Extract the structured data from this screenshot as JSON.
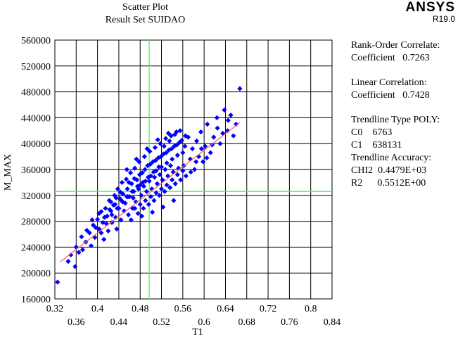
{
  "brand": {
    "name": "ANSYS",
    "version": "R19.0"
  },
  "chart_data": {
    "type": "scatter",
    "title": "Scatter Plot",
    "subtitle": "Result Set SUIDAO",
    "xlabel": "T1",
    "ylabel": "M_MAX",
    "xlim": [
      0.32,
      0.84
    ],
    "ylim": [
      160000,
      560000
    ],
    "x_ticks_upper": [
      "0.32",
      "0.4",
      "0.48",
      "0.56",
      "0.64",
      "0.72",
      "0.8"
    ],
    "x_ticks_lower": [
      "0.36",
      "0.44",
      "0.52",
      "0.6",
      "0.68",
      "0.76",
      "0.84"
    ],
    "y_ticks": [
      "160000",
      "200000",
      "240000",
      "280000",
      "320000",
      "360000",
      "400000",
      "440000",
      "480000",
      "520000",
      "560000"
    ],
    "grid": true,
    "marker_color": "#0000ff",
    "trend_color": "#ff6666",
    "mean_line_color": "#33ff33",
    "mean_x": 0.497,
    "mean_y": 326000,
    "trendline": {
      "c0": 6763,
      "c1": 638131,
      "x_range": [
        0.33,
        0.667
      ]
    },
    "series": [
      {
        "points": [
          [
            0.325,
            186000
          ],
          [
            0.345,
            218000
          ],
          [
            0.358,
            210000
          ],
          [
            0.365,
            232000
          ],
          [
            0.372,
            236000
          ],
          [
            0.378,
            248000
          ],
          [
            0.385,
            262000
          ],
          [
            0.388,
            242000
          ],
          [
            0.392,
            274000
          ],
          [
            0.395,
            255000
          ],
          [
            0.4,
            283000
          ],
          [
            0.403,
            268000
          ],
          [
            0.407,
            295000
          ],
          [
            0.41,
            278000
          ],
          [
            0.412,
            252000
          ],
          [
            0.415,
            300000
          ],
          [
            0.418,
            288000
          ],
          [
            0.42,
            265000
          ],
          [
            0.422,
            312000
          ],
          [
            0.425,
            296000
          ],
          [
            0.427,
            278000
          ],
          [
            0.43,
            305000
          ],
          [
            0.432,
            320000
          ],
          [
            0.434,
            286000
          ],
          [
            0.436,
            268000
          ],
          [
            0.438,
            330000
          ],
          [
            0.44,
            300000
          ],
          [
            0.442,
            315000
          ],
          [
            0.444,
            282000
          ],
          [
            0.446,
            340000
          ],
          [
            0.448,
            322000
          ],
          [
            0.45,
            296000
          ],
          [
            0.452,
            308000
          ],
          [
            0.454,
            345000
          ],
          [
            0.456,
            330000
          ],
          [
            0.458,
            290000
          ],
          [
            0.46,
            318000
          ],
          [
            0.462,
            355000
          ],
          [
            0.464,
            338000
          ],
          [
            0.466,
            300000
          ],
          [
            0.468,
            326000
          ],
          [
            0.47,
            362000
          ],
          [
            0.472,
            310000
          ],
          [
            0.474,
            344000
          ],
          [
            0.476,
            292000
          ],
          [
            0.478,
            372000
          ],
          [
            0.48,
            336000
          ],
          [
            0.482,
            320000
          ],
          [
            0.484,
            355000
          ],
          [
            0.486,
            300000
          ],
          [
            0.488,
            380000
          ],
          [
            0.49,
            342000
          ],
          [
            0.492,
            326000
          ],
          [
            0.494,
            366000
          ],
          [
            0.496,
            306000
          ],
          [
            0.498,
            388000
          ],
          [
            0.5,
            350000
          ],
          [
            0.502,
            330000
          ],
          [
            0.504,
            372000
          ],
          [
            0.506,
            312000
          ],
          [
            0.508,
            394000
          ],
          [
            0.51,
            358000
          ],
          [
            0.512,
            338000
          ],
          [
            0.514,
            378000
          ],
          [
            0.516,
            320000
          ],
          [
            0.518,
            400000
          ],
          [
            0.52,
            364000
          ],
          [
            0.522,
            344000
          ],
          [
            0.524,
            384000
          ],
          [
            0.526,
            326000
          ],
          [
            0.528,
            408000
          ],
          [
            0.53,
            370000
          ],
          [
            0.532,
            350000
          ],
          [
            0.534,
            390000
          ],
          [
            0.536,
            332000
          ],
          [
            0.538,
            412000
          ],
          [
            0.54,
            376000
          ],
          [
            0.542,
            356000
          ],
          [
            0.544,
            396000
          ],
          [
            0.546,
            338000
          ],
          [
            0.548,
            418000
          ],
          [
            0.55,
            382000
          ],
          [
            0.552,
            362000
          ],
          [
            0.554,
            402000
          ],
          [
            0.556,
            344000
          ],
          [
            0.558,
            405000
          ],
          [
            0.56,
            386000
          ],
          [
            0.562,
            366000
          ],
          [
            0.564,
            396000
          ],
          [
            0.566,
            350000
          ],
          [
            0.57,
            410000
          ],
          [
            0.574,
            376000
          ],
          [
            0.578,
            392000
          ],
          [
            0.582,
            360000
          ],
          [
            0.586,
            404000
          ],
          [
            0.59,
            380000
          ],
          [
            0.594,
            418000
          ],
          [
            0.598,
            372000
          ],
          [
            0.602,
            396000
          ],
          [
            0.606,
            430000
          ],
          [
            0.612,
            386000
          ],
          [
            0.618,
            410000
          ],
          [
            0.624,
            440000
          ],
          [
            0.63,
            400000
          ],
          [
            0.638,
            452000
          ],
          [
            0.644,
            420000
          ],
          [
            0.65,
            444000
          ],
          [
            0.667,
            485000
          ],
          [
            0.455,
            360000
          ],
          [
            0.463,
            282000
          ],
          [
            0.473,
            376000
          ],
          [
            0.483,
            288000
          ],
          [
            0.493,
            392000
          ],
          [
            0.503,
            294000
          ],
          [
            0.513,
            406000
          ],
          [
            0.523,
            302000
          ],
          [
            0.533,
            416000
          ],
          [
            0.543,
            312000
          ],
          [
            0.459,
            340000
          ],
          [
            0.469,
            346000
          ],
          [
            0.479,
            352000
          ],
          [
            0.489,
            360000
          ],
          [
            0.499,
            368000
          ],
          [
            0.509,
            374000
          ],
          [
            0.519,
            380000
          ],
          [
            0.529,
            386000
          ],
          [
            0.539,
            392000
          ],
          [
            0.549,
            398000
          ],
          [
            0.447,
            310000
          ],
          [
            0.457,
            318000
          ],
          [
            0.467,
            316000
          ],
          [
            0.477,
            330000
          ],
          [
            0.487,
            334000
          ],
          [
            0.497,
            342000
          ],
          [
            0.507,
            348000
          ],
          [
            0.517,
            352000
          ],
          [
            0.527,
            360000
          ],
          [
            0.537,
            366000
          ],
          [
            0.437,
            300000
          ],
          [
            0.427,
            290000
          ],
          [
            0.417,
            276000
          ],
          [
            0.407,
            262000
          ],
          [
            0.397,
            270000
          ],
          [
            0.443,
            325000
          ],
          [
            0.433,
            306000
          ],
          [
            0.423,
            298000
          ],
          [
            0.413,
            286000
          ],
          [
            0.403,
            292000
          ],
          [
            0.575,
            356000
          ],
          [
            0.585,
            372000
          ],
          [
            0.595,
            392000
          ],
          [
            0.605,
            378000
          ],
          [
            0.615,
            398000
          ],
          [
            0.565,
            412000
          ],
          [
            0.555,
            420000
          ],
          [
            0.545,
            414000
          ],
          [
            0.535,
            404000
          ],
          [
            0.525,
            396000
          ],
          [
            0.515,
            364000
          ],
          [
            0.505,
            356000
          ],
          [
            0.495,
            348000
          ],
          [
            0.485,
            340000
          ],
          [
            0.475,
            334000
          ],
          [
            0.465,
            326000
          ],
          [
            0.455,
            318000
          ],
          [
            0.445,
            312000
          ],
          [
            0.435,
            316000
          ],
          [
            0.425,
            310000
          ],
          [
            0.52,
            330000
          ],
          [
            0.53,
            336000
          ],
          [
            0.54,
            344000
          ],
          [
            0.55,
            352000
          ],
          [
            0.56,
            358000
          ],
          [
            0.47,
            300000
          ],
          [
            0.48,
            306000
          ],
          [
            0.49,
            312000
          ],
          [
            0.5,
            318000
          ],
          [
            0.51,
            324000
          ],
          [
            0.36,
            240000
          ],
          [
            0.37,
            256000
          ],
          [
            0.38,
            266000
          ],
          [
            0.39,
            282000
          ],
          [
            0.35,
            228000
          ],
          [
            0.66,
            430000
          ],
          [
            0.655,
            412000
          ],
          [
            0.645,
            436000
          ],
          [
            0.635,
            416000
          ],
          [
            0.625,
            424000
          ]
        ]
      }
    ]
  },
  "stats": {
    "rank_label": "Rank-Order Correlate:",
    "rank_coef_label": "Coefficient",
    "rank_coef_value": "0.7263",
    "linear_label": "Linear Correlation:",
    "linear_coef_label": "Coefficient",
    "linear_coef_value": "0.7428",
    "trend_type_label": "Trendline Type POLY:",
    "c0_label": "C0",
    "c0_value": "6763",
    "c1_label": "C1",
    "c1_value": "638131",
    "accuracy_label": "Trendline Accuracy:",
    "chi2_label": "CHI2",
    "chi2_value": "0.4479E+03",
    "r2_label": "R2",
    "r2_value": "0.5512E+00"
  }
}
